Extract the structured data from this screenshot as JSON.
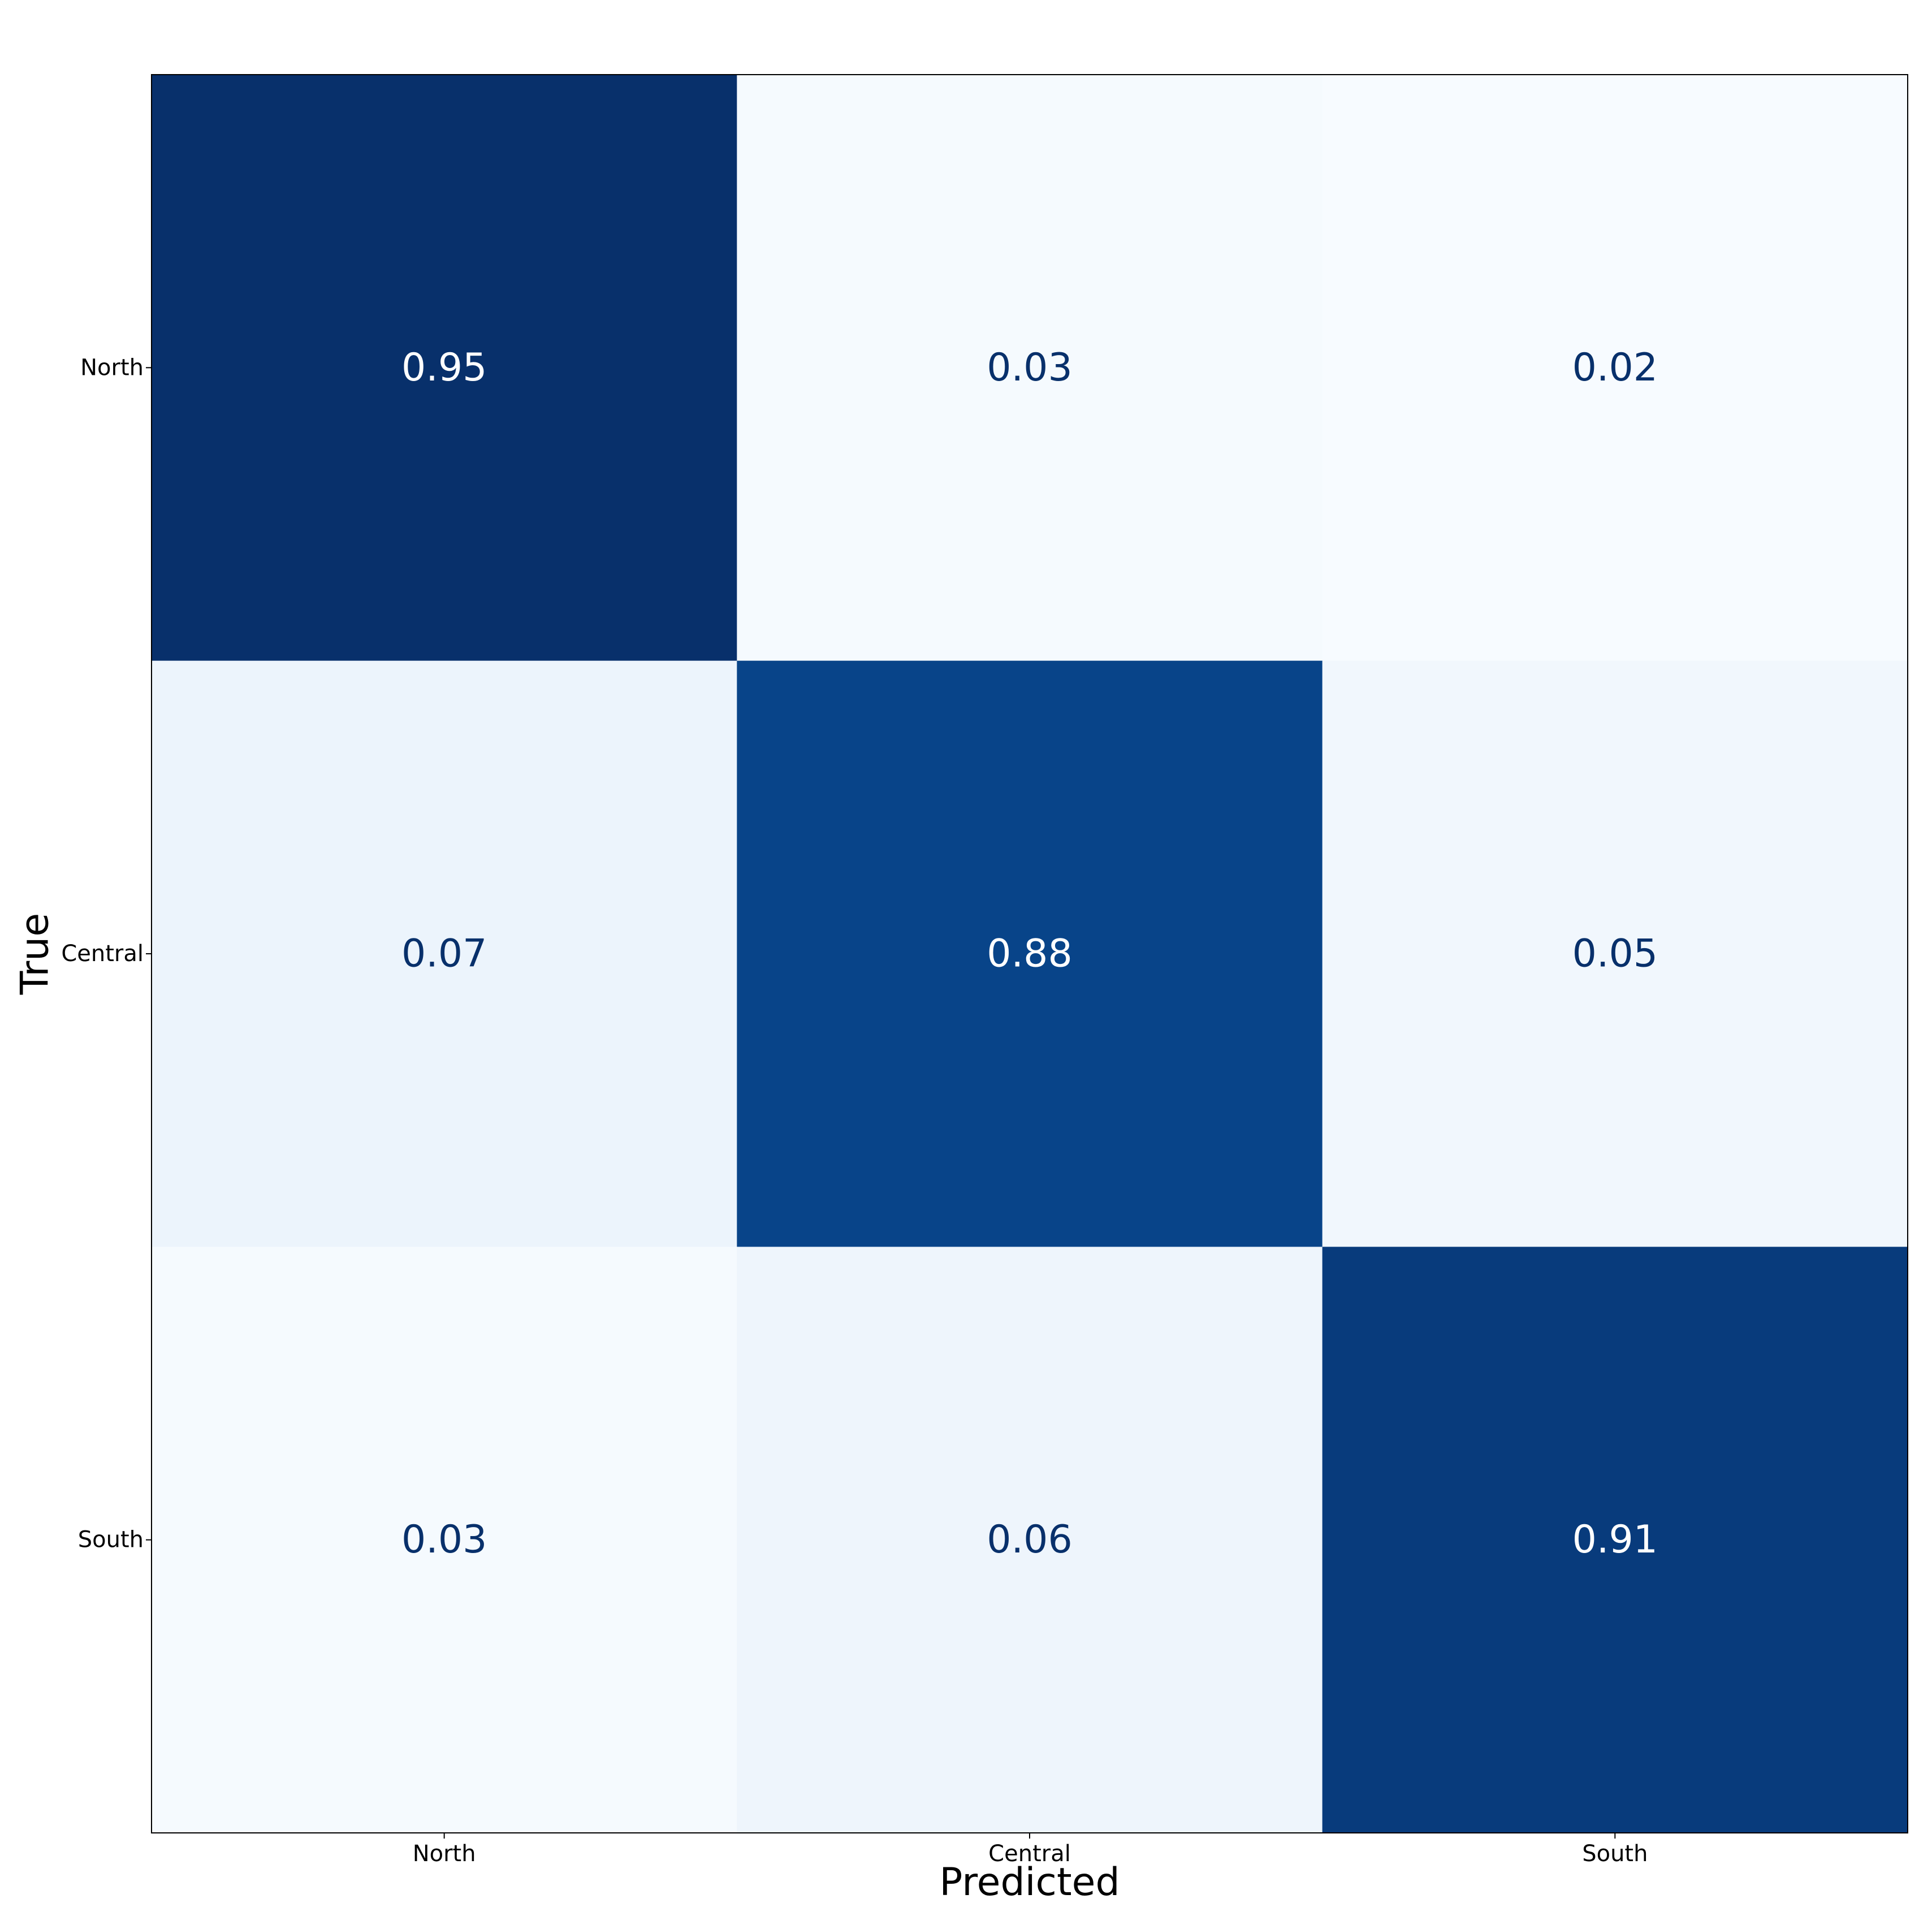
{
  "chart_data": {
    "type": "heatmap",
    "title": "",
    "xlabel": "Predicted",
    "ylabel": "True",
    "x_categories": [
      "North",
      "Central",
      "South"
    ],
    "y_categories": [
      "North",
      "Central",
      "South"
    ],
    "values": [
      [
        0.95,
        0.03,
        0.02
      ],
      [
        0.07,
        0.88,
        0.05
      ],
      [
        0.03,
        0.06,
        0.91
      ]
    ],
    "value_labels": [
      [
        "0.95",
        "0.03",
        "0.02"
      ],
      [
        "0.07",
        "0.88",
        "0.05"
      ],
      [
        "0.03",
        "0.06",
        "0.91"
      ]
    ],
    "value_range": [
      0.02,
      0.95
    ],
    "colormap": "Blues",
    "colors": {
      "low": "#f7fbff",
      "high": "#08306b",
      "light_text": "#ffffff",
      "dark_text": "#08306b"
    },
    "colorbar": false,
    "grid": false
  }
}
